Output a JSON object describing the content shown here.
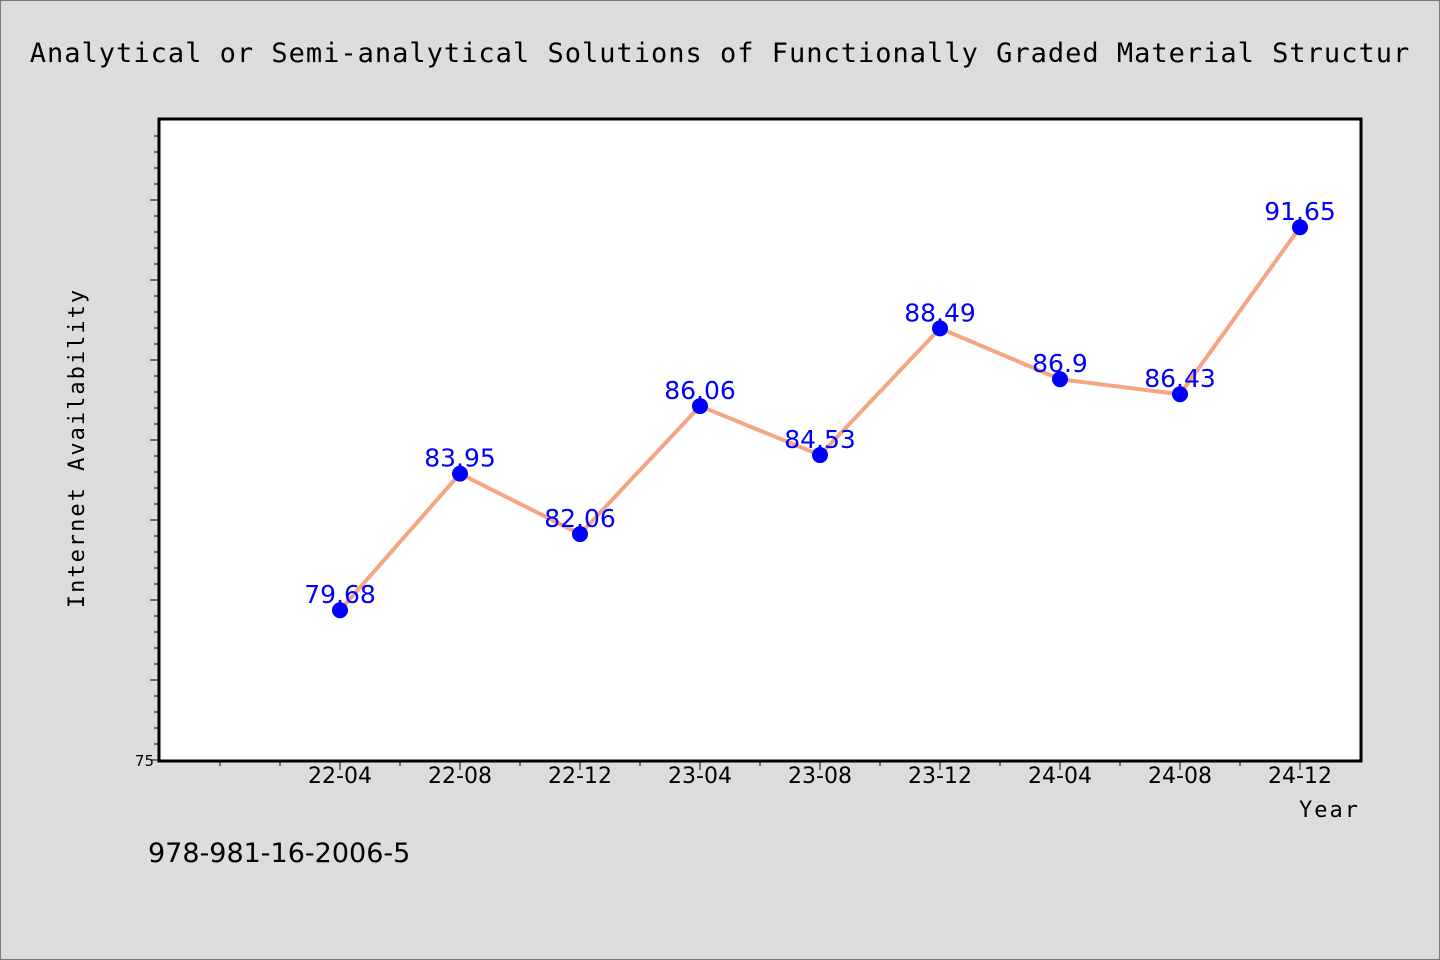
{
  "chart_data": {
    "type": "line",
    "title": "Analytical or Semi-analytical Solutions of Functionally Graded Material Structur",
    "xlabel": "Year",
    "ylabel": "Internet Availability",
    "categories": [
      "22-04",
      "22-08",
      "22-12",
      "23-04",
      "23-08",
      "23-12",
      "24-04",
      "24-08",
      "24-12"
    ],
    "values": [
      79.68,
      83.95,
      82.06,
      86.06,
      84.53,
      88.49,
      86.9,
      86.43,
      91.65
    ],
    "data_labels": [
      "79.68",
      "83.95",
      "82.06",
      "86.06",
      "84.53",
      "88.49",
      "86.9",
      "86.43",
      "91.65"
    ],
    "ylim": [
      75,
      95
    ],
    "ytick_labels": [
      {
        "value": 75,
        "label": "75"
      }
    ],
    "line_color": "#f4a582",
    "marker_color": "#0000ff",
    "label_color": "#0000ff",
    "grid": false,
    "legend": "none"
  },
  "footer_text": "978-981-16-2006-5"
}
